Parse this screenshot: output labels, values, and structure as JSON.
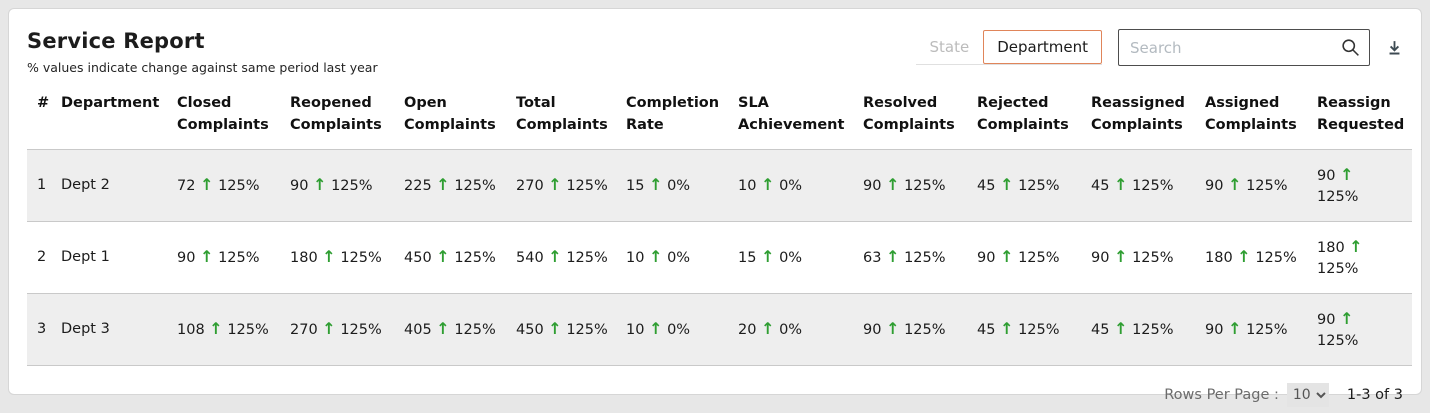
{
  "card": {
    "title": "Service Report",
    "subtitle": "% values indicate change against same period last year"
  },
  "toolbar": {
    "view_toggle": [
      {
        "label": "State",
        "active": false
      },
      {
        "label": "Department",
        "active": true
      }
    ],
    "search": {
      "placeholder": "Search",
      "value": ""
    }
  },
  "colors": {
    "accent_orange": "#e0855a",
    "arrow_green": "#2f9e32",
    "stripe_gray": "#eeeeee"
  },
  "table": {
    "columns": [
      "#",
      "Department",
      "Closed Complaints",
      "Reopened Complaints",
      "Open Complaints",
      "Total Complaints",
      "Completion Rate",
      "SLA Achievement",
      "Resolved Complaints",
      "Rejected Complaints",
      "Reassigned Complaints",
      "Assigned Complaints",
      "Reassign Requested"
    ],
    "rows": [
      {
        "index": "1",
        "department": "Dept 2",
        "metrics": [
          {
            "value": "72",
            "direction": "up",
            "change": "125%"
          },
          {
            "value": "90",
            "direction": "up",
            "change": "125%"
          },
          {
            "value": "225",
            "direction": "up",
            "change": "125%"
          },
          {
            "value": "270",
            "direction": "up",
            "change": "125%"
          },
          {
            "value": "15",
            "direction": "up",
            "change": "0%"
          },
          {
            "value": "10",
            "direction": "up",
            "change": "0%"
          },
          {
            "value": "90",
            "direction": "up",
            "change": "125%"
          },
          {
            "value": "45",
            "direction": "up",
            "change": "125%"
          },
          {
            "value": "45",
            "direction": "up",
            "change": "125%"
          },
          {
            "value": "90",
            "direction": "up",
            "change": "125%"
          },
          {
            "value": "90",
            "direction": "up",
            "change": "125%"
          }
        ]
      },
      {
        "index": "2",
        "department": "Dept 1",
        "metrics": [
          {
            "value": "90",
            "direction": "up",
            "change": "125%"
          },
          {
            "value": "180",
            "direction": "up",
            "change": "125%"
          },
          {
            "value": "450",
            "direction": "up",
            "change": "125%"
          },
          {
            "value": "540",
            "direction": "up",
            "change": "125%"
          },
          {
            "value": "10",
            "direction": "up",
            "change": "0%"
          },
          {
            "value": "15",
            "direction": "up",
            "change": "0%"
          },
          {
            "value": "63",
            "direction": "up",
            "change": "125%"
          },
          {
            "value": "90",
            "direction": "up",
            "change": "125%"
          },
          {
            "value": "90",
            "direction": "up",
            "change": "125%"
          },
          {
            "value": "180",
            "direction": "up",
            "change": "125%"
          },
          {
            "value": "180",
            "direction": "up",
            "change": "125%"
          }
        ]
      },
      {
        "index": "3",
        "department": "Dept 3",
        "metrics": [
          {
            "value": "108",
            "direction": "up",
            "change": "125%"
          },
          {
            "value": "270",
            "direction": "up",
            "change": "125%"
          },
          {
            "value": "405",
            "direction": "up",
            "change": "125%"
          },
          {
            "value": "450",
            "direction": "up",
            "change": "125%"
          },
          {
            "value": "10",
            "direction": "up",
            "change": "0%"
          },
          {
            "value": "20",
            "direction": "up",
            "change": "0%"
          },
          {
            "value": "90",
            "direction": "up",
            "change": "125%"
          },
          {
            "value": "45",
            "direction": "up",
            "change": "125%"
          },
          {
            "value": "45",
            "direction": "up",
            "change": "125%"
          },
          {
            "value": "90",
            "direction": "up",
            "change": "125%"
          },
          {
            "value": "90",
            "direction": "up",
            "change": "125%"
          }
        ]
      }
    ]
  },
  "footer": {
    "rows_per_page_label": "Rows Per Page :",
    "rows_per_page_value": "10",
    "range_label": "1-3 of 3"
  }
}
